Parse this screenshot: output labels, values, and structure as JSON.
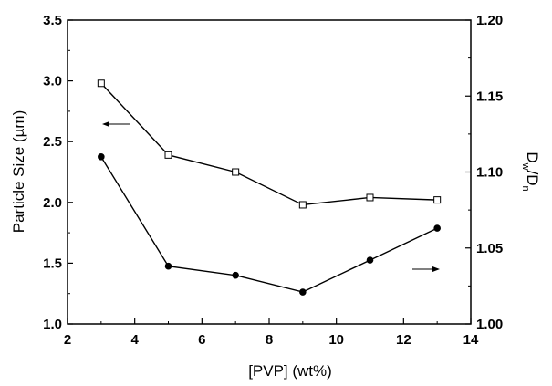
{
  "chart_data": {
    "type": "line",
    "xlabel": "[PVP] (wt%)",
    "ylabel_left": "Particle Size (µm)",
    "ylabel_right_main": "D",
    "ylabel_right_sub_w": "w",
    "ylabel_right_sep": "/D",
    "ylabel_right_sub_n": "n",
    "xlim": [
      2,
      14
    ],
    "ylim_left": [
      1.0,
      3.5
    ],
    "ylim_right": [
      1.0,
      1.2
    ],
    "x_ticks": [
      "2",
      "4",
      "6",
      "8",
      "10",
      "12",
      "14"
    ],
    "y_left_ticks": [
      "1.0",
      "1.5",
      "2.0",
      "2.5",
      "3.0",
      "3.5"
    ],
    "y_right_ticks": [
      "1.00",
      "1.05",
      "1.10",
      "1.15",
      "1.20"
    ],
    "grid": false,
    "legend": "none",
    "series": [
      {
        "axis": "left",
        "marker": "open-square",
        "x": [
          3,
          5,
          7,
          9,
          11,
          13
        ],
        "y": [
          2.98,
          2.39,
          2.25,
          1.98,
          2.04,
          2.02
        ]
      },
      {
        "axis": "right",
        "marker": "filled-circle",
        "x": [
          3,
          5,
          7,
          9,
          11,
          13
        ],
        "y": [
          1.11,
          1.038,
          1.032,
          1.021,
          1.042,
          1.063
        ]
      }
    ],
    "annotations": [
      {
        "type": "arrow",
        "direction": "left",
        "series": "open-square"
      },
      {
        "type": "arrow",
        "direction": "right",
        "series": "filled-circle"
      }
    ],
    "colors": {
      "line": "#000000",
      "background": "#ffffff"
    }
  }
}
